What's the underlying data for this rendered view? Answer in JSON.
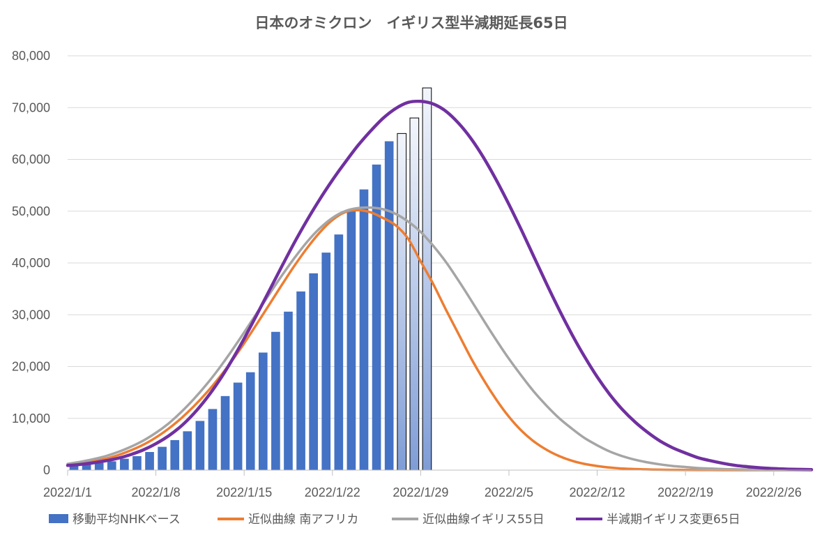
{
  "chart_data": {
    "type": "bar+line",
    "title": "日本のオミクロン　イギリス型半減期延長65日",
    "ylim": [
      0,
      80000
    ],
    "y_ticks": [
      0,
      10000,
      20000,
      30000,
      40000,
      50000,
      60000,
      70000,
      80000
    ],
    "y_tick_labels": [
      "0",
      "10,000",
      "20,000",
      "30,000",
      "40,000",
      "50,000",
      "60,000",
      "70,000",
      "80,000"
    ],
    "x_day_range": [
      0,
      59
    ],
    "x_ticks": [
      0,
      7,
      14,
      21,
      28,
      35,
      42,
      49,
      56
    ],
    "x_tick_labels": [
      "2022/1/1",
      "2022/1/8",
      "2022/1/15",
      "2022/1/22",
      "2022/1/29",
      "2022/2/5",
      "2022/2/12",
      "2022/2/19",
      "2022/2/26"
    ],
    "legend_position": "bottom",
    "bars": {
      "name": "移動平均NHKベース",
      "color": "#4472c4",
      "days": [
        0,
        1,
        2,
        3,
        4,
        5,
        6,
        7,
        8,
        9,
        10,
        11,
        12,
        13,
        14,
        15,
        16,
        17,
        18,
        19,
        20,
        21,
        22,
        23,
        24,
        25
      ],
      "values": [
        900,
        1100,
        1400,
        1700,
        2200,
        2700,
        3500,
        4500,
        5800,
        7500,
        9500,
        11800,
        14300,
        16900,
        18900,
        22700,
        26700,
        30600,
        34500,
        38000,
        42000,
        45500,
        50000,
        54200,
        59000,
        63500
      ]
    },
    "projected_bars": {
      "days": [
        26,
        27,
        28
      ],
      "values": [
        65000,
        68000,
        73800
      ]
    },
    "series": [
      {
        "name": "近似曲線 南アフリカ",
        "color": "#ed7d31",
        "days": [
          0,
          1,
          2,
          3,
          4,
          5,
          6,
          7,
          8,
          9,
          10,
          11,
          12,
          13,
          14,
          15,
          16,
          17,
          18,
          19,
          20,
          21,
          22,
          23,
          24,
          25,
          26,
          27,
          28,
          29,
          30,
          31,
          32,
          33,
          34,
          35,
          36,
          37,
          38,
          39,
          40,
          41,
          42,
          43,
          44,
          45,
          46,
          47,
          48,
          49,
          50,
          51,
          52,
          53,
          54,
          55,
          56,
          57,
          58,
          59
        ],
        "values": [
          1000,
          1300,
          1700,
          2200,
          2900,
          3800,
          4900,
          6300,
          8000,
          10000,
          12300,
          14900,
          17800,
          21000,
          24500,
          28200,
          32000,
          35800,
          39500,
          42900,
          45900,
          48300,
          49800,
          50200,
          49800,
          48700,
          47300,
          44700,
          40300,
          35900,
          31000,
          26300,
          21600,
          17400,
          13600,
          10300,
          7600,
          5500,
          3900,
          2700,
          1800,
          1200,
          800,
          500,
          300,
          200,
          130,
          80,
          50,
          30,
          20,
          10,
          5,
          0,
          0,
          0,
          0,
          0,
          0,
          0
        ]
      },
      {
        "name": "近似曲線イギリス55日",
        "color": "#a5a5a5",
        "days": [
          0,
          1,
          2,
          3,
          4,
          5,
          6,
          7,
          8,
          9,
          10,
          11,
          12,
          13,
          14,
          15,
          16,
          17,
          18,
          19,
          20,
          21,
          22,
          23,
          24,
          25,
          26,
          27,
          28,
          29,
          30,
          31,
          32,
          33,
          34,
          35,
          36,
          37,
          38,
          39,
          40,
          41,
          42,
          43,
          44,
          45,
          46,
          47,
          48,
          49,
          50,
          51,
          52,
          53,
          54,
          55,
          56,
          57,
          58,
          59
        ],
        "values": [
          1200,
          1600,
          2100,
          2700,
          3500,
          4500,
          5700,
          7200,
          9000,
          11200,
          13700,
          16500,
          19600,
          23000,
          26600,
          30300,
          34000,
          37600,
          41000,
          44100,
          46700,
          48700,
          50000,
          50600,
          50700,
          50400,
          49500,
          48000,
          46000,
          43300,
          40200,
          36600,
          32800,
          28900,
          25100,
          21500,
          18200,
          15100,
          12400,
          10000,
          8000,
          6200,
          4800,
          3600,
          2700,
          2000,
          1500,
          1100,
          800,
          600,
          400,
          300,
          200,
          150,
          100,
          70,
          50,
          30,
          20,
          10
        ]
      },
      {
        "name": "半減期イギリス変更65日",
        "color": "#7030a0",
        "days": [
          0,
          1,
          2,
          3,
          4,
          5,
          6,
          7,
          8,
          9,
          10,
          11,
          12,
          13,
          14,
          15,
          16,
          17,
          18,
          19,
          20,
          21,
          22,
          23,
          24,
          25,
          26,
          27,
          28,
          29,
          30,
          31,
          32,
          33,
          34,
          35,
          36,
          37,
          38,
          39,
          40,
          41,
          42,
          43,
          44,
          45,
          46,
          47,
          48,
          49,
          50,
          51,
          52,
          53,
          54,
          55,
          56,
          57,
          58,
          59
        ],
        "values": [
          900,
          1100,
          1400,
          1800,
          2300,
          3000,
          3900,
          5100,
          6600,
          8500,
          10900,
          13800,
          17200,
          21100,
          25400,
          30000,
          34700,
          39400,
          44000,
          48300,
          52300,
          56000,
          59400,
          62600,
          65400,
          67900,
          69800,
          71000,
          71200,
          70700,
          69300,
          67000,
          64000,
          60300,
          56000,
          51300,
          46300,
          41100,
          35900,
          30900,
          26200,
          21900,
          18000,
          14600,
          11700,
          9300,
          7300,
          5600,
          4300,
          3300,
          2400,
          1800,
          1300,
          900,
          650,
          450,
          300,
          200,
          150,
          100
        ]
      }
    ],
    "legend": [
      "移動平均NHKベース",
      "近似曲線 南アフリカ",
      "近似曲線イギリス55日",
      "半減期イギリス変更65日"
    ]
  }
}
